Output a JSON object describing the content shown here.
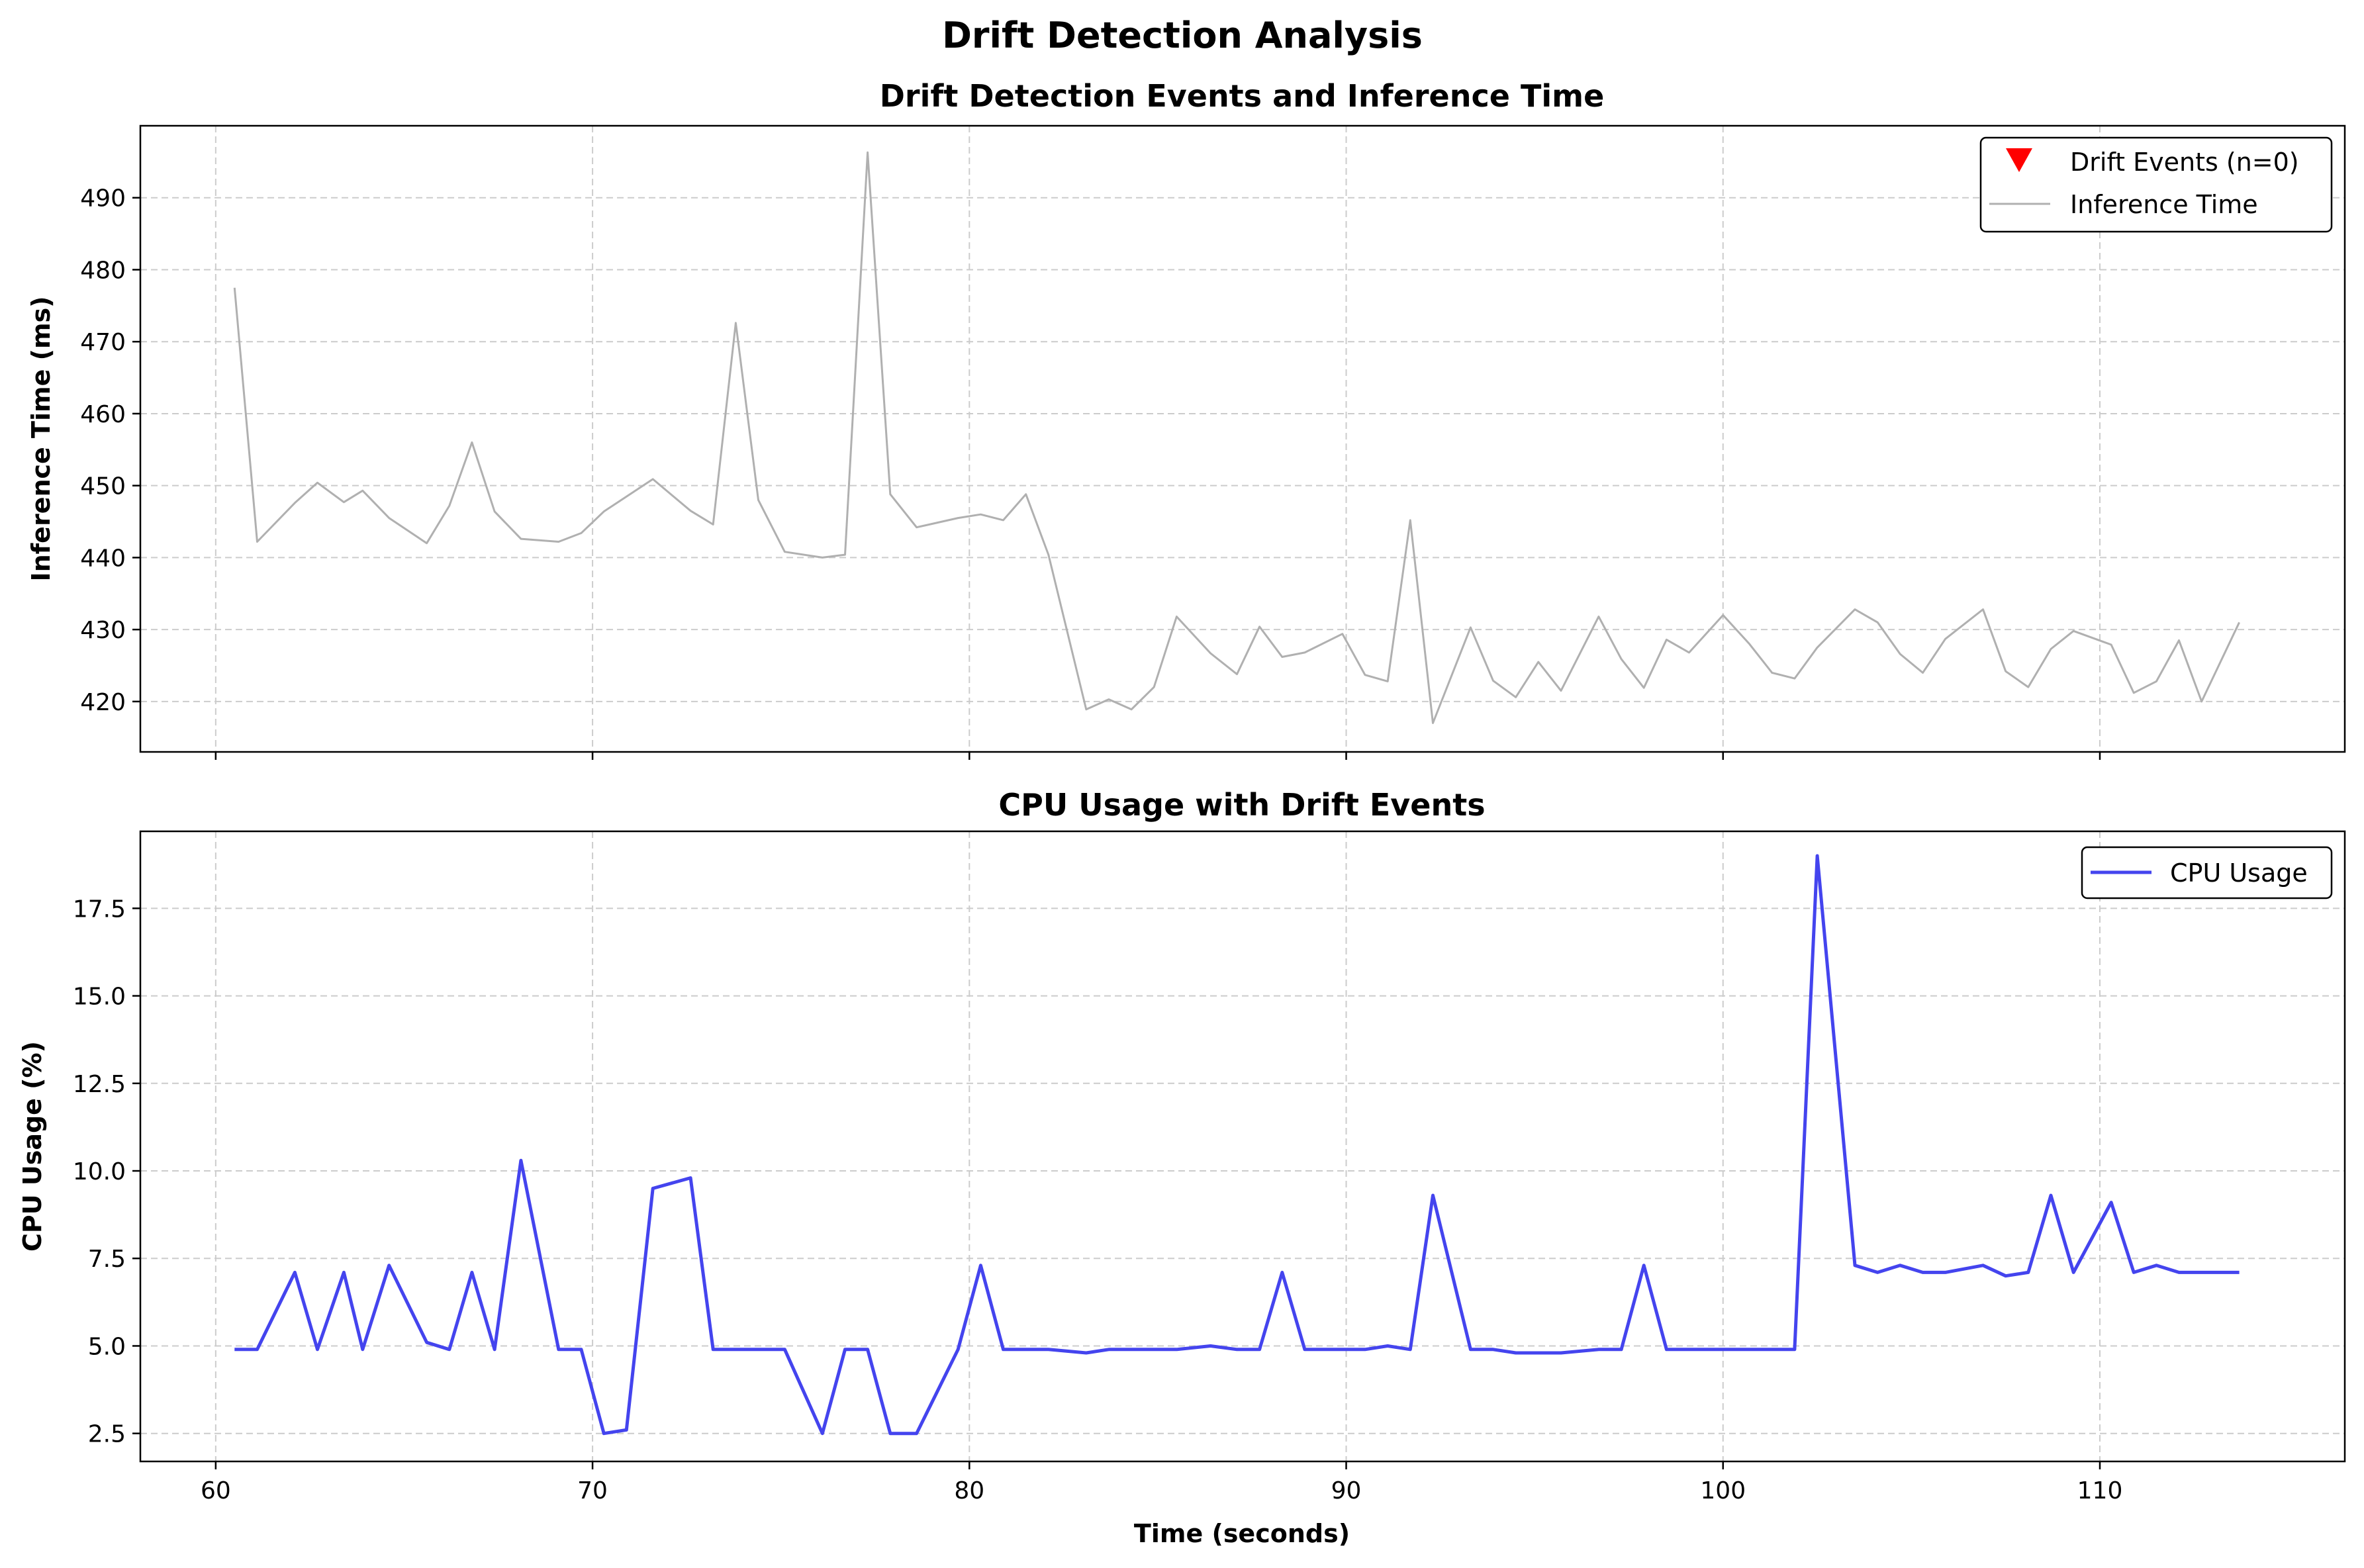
{
  "figure_title": "Drift Detection Analysis",
  "chart_data": [
    {
      "type": "line",
      "title": "Drift Detection Events and Inference Time",
      "xlabel": "",
      "ylabel": "Inference Time (ms)",
      "xlim": [
        58,
        116.5
      ],
      "ylim": [
        413,
        500
      ],
      "xticks": [
        60,
        70,
        80,
        90,
        100,
        110
      ],
      "yticks": [
        420,
        430,
        440,
        450,
        460,
        470,
        480,
        490
      ],
      "grid": true,
      "legend_position": "upper right",
      "legend": [
        "Drift Events (n=0)",
        "Inference Time"
      ],
      "series": [
        {
          "name": "Inference Time",
          "color": "#b0b0b0",
          "x": [
            60.5,
            61.1,
            62.1,
            62.7,
            63.4,
            63.9,
            64.6,
            65.6,
            66.2,
            66.8,
            67.4,
            68.1,
            69.1,
            69.7,
            70.3,
            71.6,
            72.6,
            73.2,
            73.8,
            74.4,
            75.1,
            76.1,
            76.7,
            77.3,
            77.9,
            78.6,
            79.7,
            80.3,
            80.9,
            81.5,
            82.1,
            83.1,
            83.7,
            84.3,
            84.9,
            85.5,
            86.4,
            87.1,
            87.7,
            88.3,
            88.9,
            89.9,
            90.5,
            91.1,
            91.7,
            92.3,
            93.3,
            93.9,
            94.5,
            95.1,
            95.7,
            96.7,
            97.3,
            97.9,
            98.5,
            99.1,
            100.0,
            100.7,
            101.3,
            101.9,
            102.5,
            103.5,
            104.1,
            104.7,
            105.3,
            105.9,
            106.9,
            107.5,
            108.1,
            108.7,
            109.3,
            110.3,
            110.9,
            111.5,
            112.1,
            112.7,
            113.7
          ],
          "values": [
            477.5,
            442.2,
            447.6,
            450.4,
            447.7,
            449.3,
            445.5,
            442.0,
            447.2,
            456.0,
            446.4,
            442.6,
            442.2,
            443.4,
            446.4,
            450.9,
            446.5,
            444.6,
            472.6,
            448.0,
            440.8,
            440.0,
            440.4,
            496.3,
            448.8,
            444.2,
            445.5,
            446.0,
            445.2,
            448.8,
            440.4,
            418.9,
            420.3,
            418.9,
            422.0,
            431.8,
            426.7,
            423.8,
            430.4,
            426.2,
            426.8,
            429.4,
            423.7,
            422.8,
            445.2,
            417.0,
            430.3,
            422.9,
            420.6,
            425.5,
            421.5,
            431.8,
            425.9,
            421.9,
            428.6,
            426.8,
            432.0,
            428.0,
            424.0,
            423.2,
            427.5,
            432.8,
            431.0,
            426.6,
            424.0,
            428.7,
            432.8,
            424.2,
            422.0,
            427.3,
            429.8,
            427.9,
            421.2,
            422.8,
            428.5,
            420.0,
            431.0
          ]
        },
        {
          "name": "Drift Events (n=0)",
          "color": "#ff0000",
          "marker": "down-triangle",
          "x": [],
          "values": []
        }
      ]
    },
    {
      "type": "line",
      "title": "CPU Usage with Drift Events",
      "xlabel": "Time (seconds)",
      "ylabel": "CPU Usage (%)",
      "xlim": [
        58,
        116.5
      ],
      "ylim": [
        1.7,
        19.7
      ],
      "xticks": [
        60,
        70,
        80,
        90,
        100,
        110
      ],
      "yticks": [
        2.5,
        5.0,
        7.5,
        10.0,
        12.5,
        15.0,
        17.5
      ],
      "grid": true,
      "legend_position": "upper right",
      "legend": [
        "CPU Usage"
      ],
      "series": [
        {
          "name": "CPU Usage",
          "color": "#4444ee",
          "x": [
            60.5,
            61.1,
            62.1,
            62.7,
            63.4,
            63.9,
            64.6,
            65.6,
            66.2,
            66.8,
            67.4,
            68.1,
            69.1,
            69.7,
            70.3,
            70.9,
            71.6,
            72.6,
            73.2,
            73.8,
            74.4,
            75.1,
            76.1,
            76.7,
            77.3,
            77.9,
            78.6,
            79.7,
            80.3,
            80.9,
            81.5,
            82.1,
            83.1,
            83.7,
            84.3,
            84.9,
            85.5,
            86.4,
            87.1,
            87.7,
            88.3,
            88.9,
            89.9,
            90.5,
            91.1,
            91.7,
            92.3,
            93.3,
            93.9,
            94.5,
            95.1,
            95.7,
            96.7,
            97.3,
            97.9,
            98.5,
            99.1,
            100.0,
            100.7,
            101.3,
            101.9,
            102.5,
            103.5,
            104.1,
            104.7,
            105.3,
            105.9,
            106.9,
            107.5,
            108.1,
            108.7,
            109.3,
            110.3,
            110.9,
            111.5,
            112.1,
            112.7,
            113.7
          ],
          "values": [
            4.9,
            4.9,
            7.1,
            4.9,
            7.1,
            4.9,
            7.3,
            5.1,
            4.9,
            7.1,
            4.9,
            10.3,
            4.9,
            4.9,
            2.5,
            2.6,
            9.5,
            9.8,
            4.9,
            4.9,
            4.9,
            4.9,
            2.5,
            4.9,
            4.9,
            2.5,
            2.5,
            4.9,
            7.3,
            4.9,
            4.9,
            4.9,
            4.8,
            4.9,
            4.9,
            4.9,
            4.9,
            5.0,
            4.9,
            4.9,
            7.1,
            4.9,
            4.9,
            4.9,
            5.0,
            4.9,
            9.3,
            4.9,
            4.9,
            4.8,
            4.8,
            4.8,
            4.9,
            4.9,
            7.3,
            4.9,
            4.9,
            4.9,
            4.9,
            4.9,
            4.9,
            19.0,
            7.3,
            7.1,
            7.3,
            7.1,
            7.1,
            7.3,
            7.0,
            7.1,
            9.3,
            7.1,
            9.1,
            7.1,
            7.3,
            7.1,
            7.1,
            7.1
          ]
        }
      ]
    }
  ]
}
